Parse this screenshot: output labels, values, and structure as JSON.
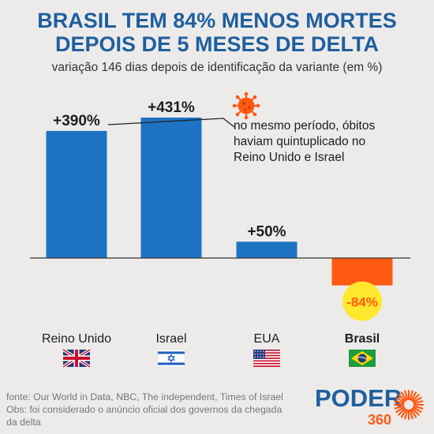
{
  "header": {
    "title_line1": "BRASIL TEM 84% MENOS MORTES",
    "title_line2": "DEPOIS DE 5 MESES DE DELTA",
    "subtitle": "variação 146 dias depois de identificação da variante (em %)"
  },
  "annotation": {
    "text_lines": [
      "no mesmo período, óbitos",
      "haviam quintuplicado no",
      "Reino Unido e Israel"
    ]
  },
  "chart_data": {
    "type": "bar",
    "title": "BRASIL TEM 84% MENOS MORTES DEPOIS DE 5 MESES DE DELTA",
    "subtitle": "variação 146 dias depois de identificação da variante (em %)",
    "categories": [
      "Reino Unido",
      "Israel",
      "EUA",
      "Brasil"
    ],
    "values": [
      390,
      431,
      50,
      -84
    ],
    "data_labels": [
      "+390%",
      "+431%",
      "+50%",
      "-84%"
    ],
    "highlight_category": "Brasil",
    "colors": {
      "positive": "#1e73c4",
      "negative": "#ff5a12",
      "highlight_circle": "#ffe82e",
      "axis": "#333333"
    },
    "flags": [
      "uk-flag",
      "israel-flag",
      "us-flag",
      "brazil-flag"
    ],
    "ylim": [
      -84,
      431
    ],
    "grid": false,
    "legend": "none"
  },
  "footer": {
    "source_line1": "fonte: Our World in Data, NBC, The independent, Times of Israel",
    "source_line2": "Obs: foi considerado o anúncio oficial dos governos da chegada",
    "source_line3": "da delta"
  },
  "brand": {
    "name": "PODER",
    "number": "360",
    "color_dark": "#1f5f9e",
    "color_accent": "#ff5a12"
  }
}
